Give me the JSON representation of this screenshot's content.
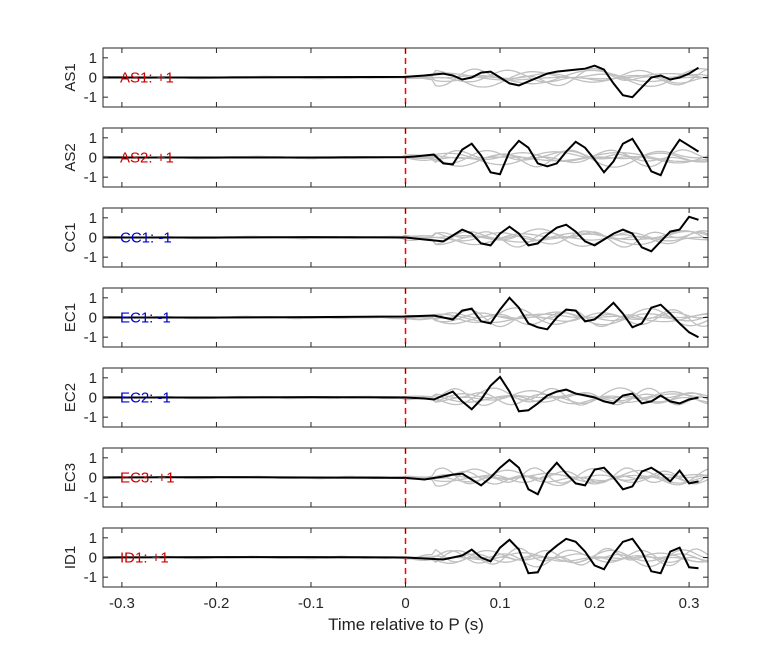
{
  "chart_data": {
    "type": "line",
    "xlabel": "Time relative to P (s)",
    "xlim": [
      -0.32,
      0.32
    ],
    "xticks": [
      -0.3,
      -0.2,
      -0.1,
      0,
      0.1,
      0.2,
      0.3
    ],
    "xtick_labels": [
      "-0.3",
      "-0.2",
      "-0.1",
      "0",
      "0.1",
      "0.2",
      "0.3"
    ],
    "ylim": [
      -1.5,
      1.5
    ],
    "yticks": [
      -1,
      0,
      1
    ],
    "ytick_labels": [
      "-1",
      "0",
      "1"
    ],
    "marker_line_x": 0,
    "colors": {
      "stacked_trace": "#000000",
      "background_traces": "#c0c0c0",
      "p_marker": "#ff0000",
      "positive_label": "#cc0000",
      "negative_label": "#0000cc"
    },
    "panels": [
      {
        "ylabel": "AS1",
        "label": "AS1: +1",
        "polarity": "+1",
        "x": [
          -0.32,
          -0.2,
          -0.1,
          0,
          0.02,
          0.04,
          0.05,
          0.06,
          0.07,
          0.08,
          0.09,
          0.1,
          0.11,
          0.12,
          0.13,
          0.14,
          0.15,
          0.16,
          0.17,
          0.18,
          0.19,
          0.2,
          0.21,
          0.22,
          0.23,
          0.24,
          0.25,
          0.26,
          0.27,
          0.28,
          0.29,
          0.3,
          0.31
        ],
        "y": [
          0,
          0,
          0.02,
          0.03,
          0.1,
          0.2,
          0.1,
          -0.1,
          0.0,
          0.25,
          0.3,
          0.0,
          -0.3,
          -0.4,
          -0.2,
          0.0,
          0.2,
          0.3,
          0.35,
          0.4,
          0.45,
          0.6,
          0.4,
          -0.3,
          -0.9,
          -1.0,
          -0.5,
          0.0,
          0.1,
          -0.1,
          0.0,
          0.2,
          0.5
        ]
      },
      {
        "ylabel": "AS2",
        "label": "AS2: +1",
        "polarity": "+1",
        "x": [
          -0.32,
          -0.2,
          -0.1,
          0,
          0.01,
          0.02,
          0.03,
          0.04,
          0.05,
          0.06,
          0.07,
          0.08,
          0.09,
          0.1,
          0.11,
          0.12,
          0.13,
          0.14,
          0.15,
          0.16,
          0.17,
          0.18,
          0.19,
          0.2,
          0.21,
          0.22,
          0.23,
          0.24,
          0.25,
          0.26,
          0.27,
          0.28,
          0.29,
          0.3,
          0.31
        ],
        "y": [
          0,
          0,
          0,
          0.02,
          0.05,
          0.1,
          0.15,
          -0.3,
          -0.35,
          0.4,
          0.7,
          0.1,
          -0.75,
          -0.85,
          0.3,
          0.85,
          0.5,
          -0.3,
          -0.45,
          -0.3,
          0.3,
          0.8,
          0.5,
          -0.1,
          -0.75,
          -0.2,
          0.7,
          0.95,
          0.2,
          -0.7,
          -0.9,
          0.2,
          0.9,
          0.6,
          0.3
        ]
      },
      {
        "ylabel": "CC1",
        "label": "CC1: -1",
        "polarity": "-1",
        "x": [
          -0.32,
          -0.2,
          -0.1,
          0,
          0.02,
          0.04,
          0.05,
          0.06,
          0.07,
          0.08,
          0.09,
          0.1,
          0.11,
          0.12,
          0.13,
          0.14,
          0.15,
          0.16,
          0.17,
          0.18,
          0.19,
          0.2,
          0.21,
          0.22,
          0.23,
          0.24,
          0.25,
          0.26,
          0.27,
          0.28,
          0.29,
          0.3,
          0.31
        ],
        "y": [
          0,
          0,
          0.02,
          0.0,
          -0.1,
          -0.2,
          0.1,
          0.4,
          0.2,
          -0.3,
          -0.4,
          0.2,
          0.55,
          0.2,
          -0.4,
          -0.3,
          0.15,
          0.5,
          0.65,
          0.3,
          -0.2,
          -0.4,
          -0.1,
          0.2,
          0.4,
          0.2,
          -0.5,
          -0.7,
          -0.2,
          0.3,
          0.4,
          1.05,
          0.9
        ]
      },
      {
        "ylabel": "EC1",
        "label": "EC1: -1",
        "polarity": "-1",
        "x": [
          -0.32,
          -0.2,
          -0.1,
          0,
          0.03,
          0.05,
          0.06,
          0.07,
          0.08,
          0.09,
          0.1,
          0.11,
          0.12,
          0.13,
          0.14,
          0.15,
          0.16,
          0.17,
          0.18,
          0.19,
          0.2,
          0.21,
          0.22,
          0.23,
          0.24,
          0.25,
          0.26,
          0.27,
          0.28,
          0.29,
          0.3,
          0.31
        ],
        "y": [
          0,
          0,
          0.02,
          0.05,
          0.1,
          -0.1,
          0.35,
          0.45,
          -0.2,
          -0.3,
          0.4,
          1.0,
          0.5,
          -0.3,
          -0.5,
          -0.6,
          0.0,
          0.4,
          0.35,
          -0.2,
          -0.1,
          0.3,
          0.75,
          0.2,
          -0.5,
          -0.3,
          0.5,
          0.65,
          0.2,
          -0.3,
          -0.75,
          -1.0
        ]
      },
      {
        "ylabel": "EC2",
        "label": "EC2: -1",
        "polarity": "-1",
        "x": [
          -0.32,
          -0.2,
          -0.1,
          0,
          0.02,
          0.03,
          0.04,
          0.05,
          0.06,
          0.07,
          0.08,
          0.09,
          0.1,
          0.11,
          0.12,
          0.13,
          0.14,
          0.15,
          0.16,
          0.17,
          0.18,
          0.19,
          0.2,
          0.21,
          0.22,
          0.23,
          0.24,
          0.25,
          0.26,
          0.27,
          0.28,
          0.29,
          0.3,
          0.31
        ],
        "y": [
          0,
          0,
          0.02,
          0,
          -0.05,
          -0.1,
          0.1,
          0.3,
          -0.2,
          -0.6,
          -0.1,
          0.6,
          1.05,
          0.3,
          -0.7,
          -0.65,
          -0.3,
          0.1,
          0.3,
          0.4,
          0.2,
          0.1,
          0.0,
          -0.2,
          -0.3,
          0.1,
          0.2,
          -0.3,
          -0.2,
          0.1,
          -0.2,
          -0.3,
          -0.1,
          0.0
        ]
      },
      {
        "ylabel": "EC3",
        "label": "EC3: +1",
        "polarity": "+1",
        "x": [
          -0.32,
          -0.2,
          -0.1,
          0,
          0.02,
          0.04,
          0.05,
          0.06,
          0.07,
          0.08,
          0.09,
          0.1,
          0.11,
          0.12,
          0.13,
          0.14,
          0.15,
          0.16,
          0.17,
          0.18,
          0.19,
          0.2,
          0.21,
          0.22,
          0.23,
          0.24,
          0.25,
          0.26,
          0.27,
          0.28,
          0.29,
          0.3,
          0.31
        ],
        "y": [
          0,
          0.02,
          0.0,
          -0.02,
          -0.1,
          0.05,
          0.15,
          0.2,
          -0.1,
          -0.4,
          0.0,
          0.5,
          0.9,
          0.5,
          -0.6,
          -0.85,
          0.2,
          0.75,
          0.2,
          -0.3,
          -0.4,
          0.4,
          0.5,
          0.0,
          -0.6,
          -0.45,
          0.3,
          0.5,
          0.2,
          -0.2,
          0.35,
          -0.3,
          -0.2
        ]
      },
      {
        "ylabel": "ID1",
        "label": "ID1: +1",
        "polarity": "+1",
        "x": [
          -0.32,
          -0.2,
          -0.1,
          0,
          0.02,
          0.04,
          0.06,
          0.07,
          0.08,
          0.09,
          0.1,
          0.11,
          0.12,
          0.13,
          0.14,
          0.15,
          0.16,
          0.17,
          0.18,
          0.19,
          0.2,
          0.21,
          0.22,
          0.23,
          0.24,
          0.25,
          0.26,
          0.27,
          0.28,
          0.29,
          0.3,
          0.31
        ],
        "y": [
          0,
          0.02,
          0.02,
          0,
          -0.05,
          -0.1,
          0.1,
          0.4,
          0.0,
          -0.2,
          0.5,
          0.9,
          0.4,
          -0.8,
          -0.75,
          0.2,
          0.6,
          0.95,
          0.8,
          0.3,
          -0.4,
          -0.6,
          0.2,
          0.8,
          0.95,
          0.3,
          -0.7,
          -0.8,
          0.3,
          0.5,
          -0.5,
          -0.55
        ]
      }
    ]
  }
}
